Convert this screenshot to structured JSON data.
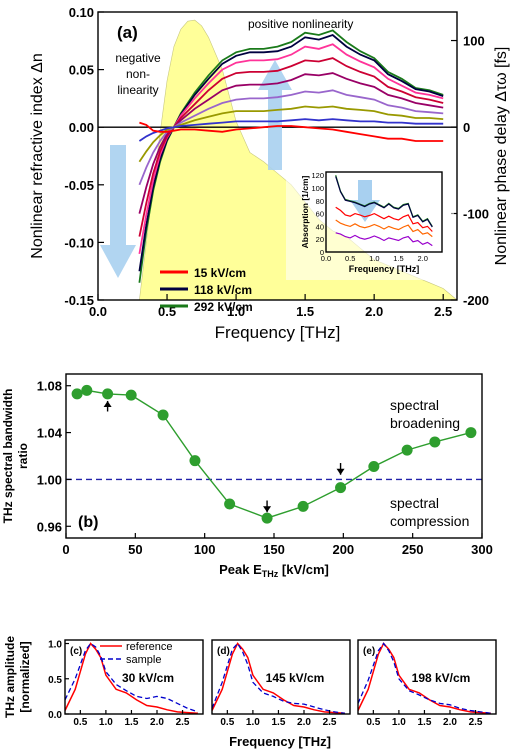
{
  "chart_data": [
    {
      "id": "a",
      "type": "line",
      "panel_label": "(a)",
      "xlabel": "Frequency [THz]",
      "ylabel": "Nonlinear refractive index Δn",
      "y2label": "Nonlinear phase delay Δτω [fs]",
      "xlim": [
        0.0,
        2.6
      ],
      "ylim": [
        -0.15,
        0.1
      ],
      "y2lim": [
        -200,
        133
      ],
      "xticks": [
        "0.0",
        "0.5",
        "1.0",
        "1.5",
        "2.0",
        "2.5"
      ],
      "yticks": [
        "-0.15",
        "-0.10",
        "-0.05",
        "0.00",
        "0.05",
        "0.10"
      ],
      "y2ticks": [
        "-200",
        "-100",
        "0",
        "100"
      ],
      "annotations": [
        "positive nonlinearity",
        "negative",
        "non-",
        "linearity"
      ],
      "legend": [
        {
          "label": "15 kV/cm",
          "color": "#ff0000"
        },
        {
          "label": "118 kV/cm",
          "color": "#000040"
        },
        {
          "label": "292 kV/cm",
          "color": "#1a7a1a"
        }
      ],
      "spectrum": {
        "color": "#ffff99",
        "x": [
          0.3,
          0.4,
          0.5,
          0.55,
          0.6,
          0.65,
          0.7,
          0.75,
          0.8,
          0.9,
          1.0,
          1.1,
          1.2,
          1.3,
          1.4,
          1.5,
          1.6,
          1.7,
          1.8,
          1.9,
          2.0,
          2.1,
          2.2,
          2.3,
          2.4,
          2.5,
          2.6
        ],
        "y": [
          -0.15,
          -0.05,
          0.04,
          0.07,
          0.085,
          0.092,
          0.093,
          0.088,
          0.078,
          0.05,
          0.005,
          -0.022,
          -0.03,
          -0.04,
          -0.05,
          -0.065,
          -0.08,
          -0.09,
          -0.095,
          -0.105,
          -0.115,
          -0.12,
          -0.125,
          -0.13,
          -0.135,
          -0.14,
          -0.15
        ]
      },
      "x": [
        0.3,
        0.35,
        0.4,
        0.45,
        0.5,
        0.55,
        0.6,
        0.7,
        0.8,
        0.9,
        1.0,
        1.1,
        1.2,
        1.3,
        1.4,
        1.5,
        1.6,
        1.7,
        1.8,
        1.9,
        2.0,
        2.1,
        2.2,
        2.3,
        2.4,
        2.5
      ],
      "series": [
        {
          "color": "#1a7a1a",
          "values": [
            -0.135,
            -0.09,
            -0.055,
            -0.03,
            -0.012,
            0.0,
            0.012,
            0.03,
            0.045,
            0.058,
            0.065,
            0.068,
            0.068,
            0.07,
            0.074,
            0.082,
            0.08,
            0.084,
            0.074,
            0.066,
            0.06,
            0.048,
            0.042,
            0.034,
            0.032,
            0.028
          ]
        },
        {
          "color": "#000040",
          "values": [
            -0.125,
            -0.085,
            -0.052,
            -0.028,
            -0.011,
            0.0,
            0.011,
            0.028,
            0.042,
            0.055,
            0.062,
            0.065,
            0.065,
            0.066,
            0.07,
            0.078,
            0.076,
            0.08,
            0.07,
            0.063,
            0.058,
            0.046,
            0.04,
            0.033,
            0.031,
            0.027
          ]
        },
        {
          "color": "#ff3399",
          "values": [
            -0.11,
            -0.076,
            -0.046,
            -0.024,
            -0.009,
            0.0,
            0.01,
            0.025,
            0.038,
            0.05,
            0.056,
            0.058,
            0.058,
            0.059,
            0.063,
            0.07,
            0.068,
            0.072,
            0.063,
            0.057,
            0.052,
            0.042,
            0.036,
            0.03,
            0.028,
            0.025
          ]
        },
        {
          "color": "#cc0033",
          "values": [
            -0.095,
            -0.066,
            -0.04,
            -0.021,
            -0.008,
            0.0,
            0.008,
            0.02,
            0.032,
            0.042,
            0.047,
            0.048,
            0.048,
            0.049,
            0.053,
            0.058,
            0.057,
            0.06,
            0.053,
            0.048,
            0.044,
            0.035,
            0.031,
            0.026,
            0.024,
            0.021
          ]
        },
        {
          "color": "#990066",
          "values": [
            -0.075,
            -0.052,
            -0.032,
            -0.017,
            -0.006,
            0.0,
            0.006,
            0.016,
            0.024,
            0.032,
            0.036,
            0.037,
            0.037,
            0.038,
            0.041,
            0.046,
            0.045,
            0.047,
            0.042,
            0.038,
            0.035,
            0.028,
            0.025,
            0.021,
            0.019,
            0.017
          ]
        },
        {
          "color": "#9966cc",
          "values": [
            -0.05,
            -0.035,
            -0.022,
            -0.012,
            -0.004,
            0.0,
            0.004,
            0.01,
            0.016,
            0.021,
            0.024,
            0.025,
            0.025,
            0.026,
            0.028,
            0.031,
            0.03,
            0.032,
            0.028,
            0.026,
            0.024,
            0.019,
            0.017,
            0.014,
            0.013,
            0.012
          ]
        },
        {
          "color": "#999900",
          "values": [
            -0.03,
            -0.021,
            -0.013,
            -0.007,
            -0.002,
            0.0,
            0.002,
            0.006,
            0.009,
            0.012,
            0.014,
            0.014,
            0.014,
            0.015,
            0.016,
            0.018,
            0.017,
            0.018,
            0.016,
            0.015,
            0.014,
            0.011,
            0.01,
            0.008,
            0.008,
            0.007
          ]
        },
        {
          "color": "#3333cc",
          "values": [
            -0.012,
            -0.008,
            -0.005,
            -0.003,
            -0.001,
            0.0,
            0.001,
            0.002,
            0.003,
            0.004,
            0.005,
            0.005,
            0.005,
            0.005,
            0.006,
            0.007,
            0.006,
            0.007,
            0.006,
            0.005,
            0.005,
            0.004,
            0.004,
            0.003,
            0.003,
            0.003
          ]
        },
        {
          "color": "#ff0000",
          "values": [
            0.004,
            0.002,
            -0.003,
            -0.004,
            -0.004,
            -0.003,
            -0.002,
            -0.002,
            -0.003,
            -0.004,
            -0.002,
            -0.001,
            0.0,
            0.001,
            0.001,
            0.0,
            -0.001,
            -0.002,
            -0.004,
            -0.006,
            -0.008,
            -0.01,
            -0.01,
            -0.012,
            -0.012,
            -0.012
          ]
        }
      ],
      "inset": {
        "xlabel": "Frequency [THz]",
        "ylabel": "Absorption [1/cm]",
        "xlim": [
          0,
          2.4
        ],
        "ylim": [
          0,
          125
        ],
        "xticks": [
          "0.0",
          "0.5",
          "1.0",
          "1.5",
          "2.0"
        ],
        "yticks": [
          "0",
          "20",
          "40",
          "60",
          "80",
          "100",
          "120"
        ],
        "x": [
          0.2,
          0.3,
          0.4,
          0.5,
          0.6,
          0.7,
          0.8,
          0.9,
          1.0,
          1.1,
          1.2,
          1.3,
          1.4,
          1.5,
          1.6,
          1.7,
          1.8,
          1.9,
          2.0,
          2.1,
          2.2
        ],
        "series": [
          {
            "color": "#1a7a1a",
            "values": [
              120,
              95,
              82,
              80,
              78,
              75,
              72,
              76,
              78,
              74,
              70,
              76,
              70,
              68,
              74,
              76,
              55,
              58,
              48,
              52,
              40
            ]
          },
          {
            "color": "#000040",
            "values": [
              118,
              94,
              81,
              79,
              77,
              74,
              71,
              75,
              77,
              73,
              69,
              75,
              69,
              67,
              73,
              75,
              54,
              57,
              47,
              51,
              39
            ]
          },
          {
            "color": "#ff0000",
            "values": [
              70,
              65,
              58,
              56,
              60,
              58,
              55,
              57,
              60,
              56,
              52,
              56,
              52,
              50,
              55,
              58,
              44,
              46,
              38,
              40,
              32
            ]
          },
          {
            "color": "#ff6600",
            "values": [
              50,
              45,
              42,
              40,
              44,
              40,
              38,
              40,
              43,
              40,
              36,
              40,
              37,
              35,
              39,
              42,
              32,
              35,
              28,
              30,
              24
            ]
          },
          {
            "color": "#9900cc",
            "values": [
              30,
              28,
              24,
              22,
              26,
              22,
              20,
              22,
              25,
              22,
              18,
              22,
              20,
              18,
              22,
              24,
              16,
              18,
              12,
              15,
              10
            ]
          }
        ]
      }
    },
    {
      "id": "b",
      "type": "line",
      "panel_label": "(b)",
      "xlabel": "Peak E",
      "xlabel_sub": "THz",
      "xlabel_unit": " [kV/cm]",
      "ylabel": "THz spectral bandwidth",
      "ylabel2": "ratio",
      "xlim": [
        0,
        300
      ],
      "ylim": [
        0.95,
        1.09
      ],
      "xticks": [
        "0",
        "50",
        "100",
        "150",
        "200",
        "250",
        "300"
      ],
      "yticks": [
        "0.96",
        "1.00",
        "1.04",
        "1.08"
      ],
      "reference_line": 1.0,
      "annotations": [
        "spectral",
        "broadening",
        "spectral",
        "compression"
      ],
      "arrows_at_x": [
        30,
        145,
        198
      ],
      "x": [
        8,
        15,
        30,
        47,
        70,
        93,
        118,
        145,
        171,
        198,
        222,
        246,
        266,
        292
      ],
      "values": [
        1.073,
        1.076,
        1.073,
        1.072,
        1.055,
        1.016,
        0.979,
        0.967,
        0.977,
        0.993,
        1.011,
        1.025,
        1.032,
        1.04
      ]
    },
    {
      "id": "c",
      "type": "line",
      "panel_label": "(c)",
      "field_label": "30 kV/cm",
      "ylabel": "THz amplitude",
      "ylabel2": "[normalized]",
      "xlabel": "Frequency [THz]",
      "xlim": [
        0.2,
        2.9
      ],
      "ylim": [
        0,
        1.05
      ],
      "xticks": [
        "0.5",
        "1.0",
        "1.5",
        "2.0",
        "2.5"
      ],
      "yticks": [
        "0.0",
        "0.5",
        "1.0"
      ],
      "legend": [
        {
          "label": "reference",
          "color": "#ff0000"
        },
        {
          "label": "sample",
          "color": "#0000cc"
        }
      ],
      "x": [
        0.2,
        0.4,
        0.6,
        0.7,
        0.8,
        0.9,
        1.0,
        1.2,
        1.4,
        1.6,
        1.8,
        2.0,
        2.2,
        2.4,
        2.6,
        2.8
      ],
      "reference": [
        0.05,
        0.35,
        0.85,
        1.0,
        0.92,
        0.8,
        0.55,
        0.35,
        0.3,
        0.2,
        0.12,
        0.1,
        0.06,
        0.03,
        0.02,
        0.01
      ],
      "sample": [
        0.2,
        0.5,
        0.9,
        1.0,
        0.95,
        0.82,
        0.6,
        0.42,
        0.33,
        0.25,
        0.22,
        0.25,
        0.22,
        0.15,
        0.08,
        0.03
      ]
    },
    {
      "id": "d",
      "type": "line",
      "panel_label": "(d)",
      "field_label": "145 kV/cm",
      "xlim": [
        0.2,
        2.9
      ],
      "ylim": [
        0,
        1.05
      ],
      "xticks": [
        "0.5",
        "1.0",
        "1.5",
        "2.0",
        "2.5"
      ],
      "x": [
        0.2,
        0.4,
        0.6,
        0.7,
        0.8,
        0.9,
        1.0,
        1.2,
        1.4,
        1.6,
        1.8,
        2.0,
        2.2,
        2.4,
        2.6,
        2.8
      ],
      "reference": [
        0.05,
        0.35,
        0.85,
        1.0,
        0.92,
        0.8,
        0.55,
        0.35,
        0.3,
        0.2,
        0.12,
        0.1,
        0.06,
        0.03,
        0.02,
        0.01
      ],
      "sample": [
        0.08,
        0.45,
        0.92,
        1.0,
        0.88,
        0.7,
        0.45,
        0.3,
        0.25,
        0.18,
        0.15,
        0.14,
        0.1,
        0.06,
        0.03,
        0.01
      ]
    },
    {
      "id": "e",
      "type": "line",
      "panel_label": "(e)",
      "field_label": "198 kV/cm",
      "xlim": [
        0.2,
        2.9
      ],
      "ylim": [
        0,
        1.05
      ],
      "xticks": [
        "0.5",
        "1.0",
        "1.5",
        "2.0",
        "2.5"
      ],
      "x": [
        0.2,
        0.4,
        0.6,
        0.7,
        0.8,
        0.9,
        1.0,
        1.2,
        1.4,
        1.6,
        1.8,
        2.0,
        2.2,
        2.4,
        2.6,
        2.8
      ],
      "reference": [
        0.05,
        0.35,
        0.85,
        1.0,
        0.92,
        0.8,
        0.55,
        0.35,
        0.3,
        0.2,
        0.12,
        0.1,
        0.06,
        0.03,
        0.02,
        0.01
      ],
      "sample": [
        0.15,
        0.48,
        0.9,
        1.0,
        0.9,
        0.74,
        0.5,
        0.33,
        0.27,
        0.2,
        0.15,
        0.13,
        0.08,
        0.05,
        0.03,
        0.01
      ]
    }
  ]
}
